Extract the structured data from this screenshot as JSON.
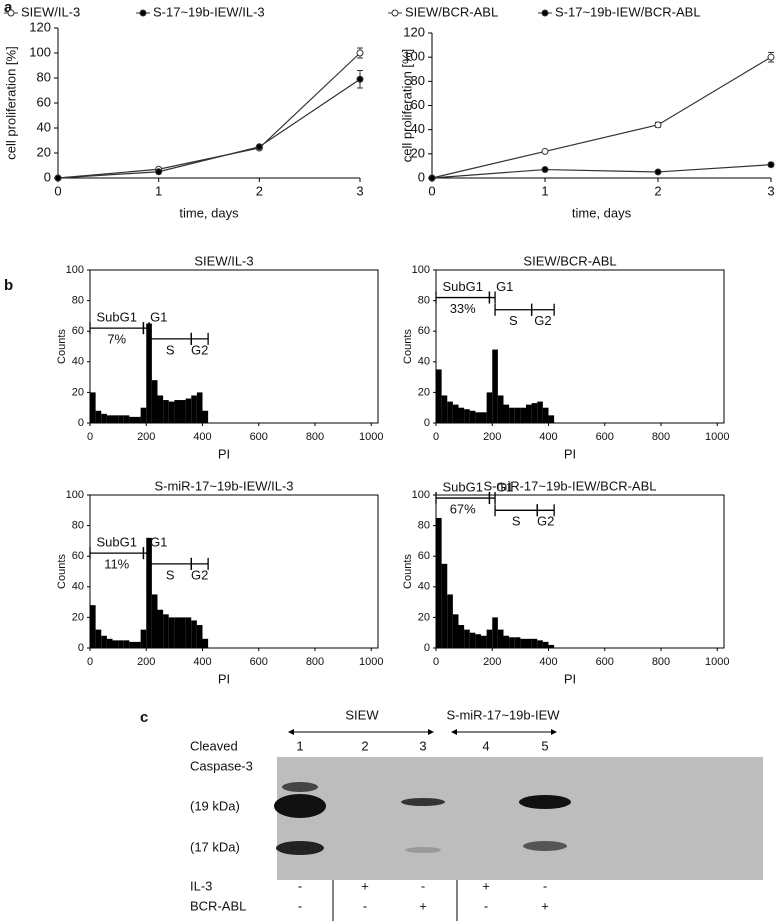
{
  "panel_labels": [
    "a",
    "b",
    "c"
  ],
  "chart_data": [
    {
      "type": "line",
      "xlabel": "time, days",
      "ylabel": "cell proliferation [%]",
      "x": [
        0,
        1,
        2,
        3
      ],
      "xlim": [
        0,
        3
      ],
      "xticks": [
        0,
        1,
        2,
        3
      ],
      "ylim": [
        0,
        120
      ],
      "yticks": [
        0,
        20,
        40,
        60,
        80,
        100,
        120
      ],
      "series": [
        {
          "name": "SIEW/IL-3",
          "color": "#333333",
          "marker_fill": "#ffffff",
          "values": [
            0,
            7,
            24,
            100
          ],
          "errors": [
            0,
            1,
            1,
            4
          ]
        },
        {
          "name": "S-17~19b-IEW/IL-3",
          "color": "#333333",
          "marker_fill": "#000000",
          "values": [
            0,
            5,
            25,
            79
          ],
          "errors": [
            0,
            1,
            1,
            7
          ]
        }
      ]
    },
    {
      "type": "line",
      "xlabel": "time, days",
      "ylabel": "cell proliferation [%]",
      "x": [
        0,
        1,
        2,
        3
      ],
      "xlim": [
        0,
        3
      ],
      "xticks": [
        0,
        1,
        2,
        3
      ],
      "ylim": [
        0,
        120
      ],
      "yticks": [
        0,
        20,
        40,
        60,
        80,
        100,
        120
      ],
      "series": [
        {
          "name": "SIEW/BCR-ABL",
          "color": "#333333",
          "marker_fill": "#ffffff",
          "values": [
            0,
            22,
            44,
            100
          ],
          "errors": [
            0,
            1,
            2,
            4
          ]
        },
        {
          "name": "S-17~19b-IEW/BCR-ABL",
          "color": "#333333",
          "marker_fill": "#000000",
          "values": [
            0,
            7,
            5,
            11
          ],
          "errors": [
            0,
            0.5,
            0.5,
            1.5
          ]
        }
      ]
    },
    {
      "type": "histogram",
      "title": "SIEW/IL-3",
      "xlabel": "PI",
      "ylabel": "Counts",
      "color": "#000000",
      "bins": [
        0,
        20,
        40,
        60,
        80,
        100,
        120,
        140,
        160,
        180,
        200,
        220,
        240,
        260,
        280,
        300,
        320,
        340,
        360,
        380,
        400,
        420
      ],
      "counts": [
        20,
        8,
        6,
        5,
        5,
        5,
        5,
        4,
        4,
        10,
        65,
        28,
        18,
        15,
        14,
        15,
        15,
        16,
        18,
        20,
        8
      ],
      "xlim": [
        0,
        1024
      ],
      "xticks": [
        0,
        200,
        400,
        600,
        800,
        1000
      ],
      "ylim": [
        0,
        100
      ],
      "yticks": [
        0,
        20,
        40,
        60,
        80,
        100
      ],
      "gates": [
        {
          "label": "SubG1",
          "range": [
            0,
            190
          ],
          "level": 62,
          "note": "7%"
        },
        {
          "label": "G1",
          "range": [
            190,
            210
          ],
          "level": 62
        },
        {
          "label": "S",
          "range": [
            210,
            360
          ],
          "level": 55
        },
        {
          "label": "G2",
          "range": [
            360,
            420
          ],
          "level": 55
        }
      ]
    },
    {
      "type": "histogram",
      "title": "SIEW/BCR-ABL",
      "xlabel": "PI",
      "ylabel": "Counts",
      "color": "#000000",
      "bins": [
        0,
        20,
        40,
        60,
        80,
        100,
        120,
        140,
        160,
        180,
        200,
        220,
        240,
        260,
        280,
        300,
        320,
        340,
        360,
        380,
        400,
        420
      ],
      "counts": [
        35,
        18,
        14,
        12,
        10,
        9,
        8,
        7,
        7,
        20,
        48,
        18,
        12,
        10,
        10,
        10,
        12,
        13,
        14,
        10,
        5
      ],
      "xlim": [
        0,
        1024
      ],
      "xticks": [
        0,
        200,
        400,
        600,
        800,
        1000
      ],
      "ylim": [
        0,
        100
      ],
      "yticks": [
        0,
        20,
        40,
        60,
        80,
        100
      ],
      "gates": [
        {
          "label": "SubG1",
          "range": [
            0,
            190
          ],
          "level": 82,
          "note": "33%"
        },
        {
          "label": "G1",
          "range": [
            190,
            210
          ],
          "level": 82
        },
        {
          "label": "S",
          "range": [
            210,
            340
          ],
          "level": 74
        },
        {
          "label": "G2",
          "range": [
            340,
            420
          ],
          "level": 74
        }
      ]
    },
    {
      "type": "histogram",
      "title": "S-miR-17~19b-IEW/IL-3",
      "xlabel": "PI",
      "ylabel": "Counts",
      "color": "#000000",
      "bins": [
        0,
        20,
        40,
        60,
        80,
        100,
        120,
        140,
        160,
        180,
        200,
        220,
        240,
        260,
        280,
        300,
        320,
        340,
        360,
        380,
        400,
        420
      ],
      "counts": [
        28,
        12,
        8,
        6,
        5,
        5,
        5,
        4,
        4,
        12,
        72,
        35,
        25,
        22,
        20,
        20,
        20,
        20,
        18,
        15,
        6
      ],
      "xlim": [
        0,
        1024
      ],
      "xticks": [
        0,
        200,
        400,
        600,
        800,
        1000
      ],
      "ylim": [
        0,
        100
      ],
      "yticks": [
        0,
        20,
        40,
        60,
        80,
        100
      ],
      "gates": [
        {
          "label": "SubG1",
          "range": [
            0,
            190
          ],
          "level": 62,
          "note": "11%"
        },
        {
          "label": "G1",
          "range": [
            190,
            210
          ],
          "level": 62
        },
        {
          "label": "S",
          "range": [
            210,
            360
          ],
          "level": 55
        },
        {
          "label": "G2",
          "range": [
            360,
            420
          ],
          "level": 55
        }
      ]
    },
    {
      "type": "histogram",
      "title": "S-miR-17~19b-IEW/BCR-ABL",
      "xlabel": "PI",
      "ylabel": "Counts",
      "color": "#000000",
      "bins": [
        0,
        20,
        40,
        60,
        80,
        100,
        120,
        140,
        160,
        180,
        200,
        220,
        240,
        260,
        280,
        300,
        320,
        340,
        360,
        380,
        400,
        420
      ],
      "counts": [
        85,
        55,
        35,
        22,
        15,
        12,
        10,
        9,
        8,
        12,
        20,
        12,
        8,
        7,
        7,
        6,
        6,
        6,
        5,
        4,
        2
      ],
      "xlim": [
        0,
        1024
      ],
      "xticks": [
        0,
        200,
        400,
        600,
        800,
        1000
      ],
      "ylim": [
        0,
        100
      ],
      "yticks": [
        0,
        20,
        40,
        60,
        80,
        100
      ],
      "gates": [
        {
          "label": "SubG1",
          "range": [
            0,
            190
          ],
          "level": 98,
          "note": "67%"
        },
        {
          "label": "G1",
          "range": [
            190,
            210
          ],
          "level": 98
        },
        {
          "label": "S",
          "range": [
            210,
            360
          ],
          "level": 90
        },
        {
          "label": "G2",
          "range": [
            360,
            420
          ],
          "level": 90
        }
      ]
    }
  ],
  "blot": {
    "groups": [
      "SIEW",
      "S-miR-17~19b-IEW"
    ],
    "protein": [
      "Cleaved",
      "Caspase-3"
    ],
    "lanes": [
      "1",
      "2",
      "3",
      "4",
      "5"
    ],
    "bands": [
      "(19 kDa)",
      "(17 kDa)"
    ],
    "rows": [
      {
        "name": "IL-3",
        "signs": [
          "-",
          "+",
          "-",
          "+",
          "-"
        ]
      },
      {
        "name": "BCR-ABL",
        "signs": [
          "-",
          "-",
          "+",
          "-",
          "+"
        ]
      }
    ]
  }
}
